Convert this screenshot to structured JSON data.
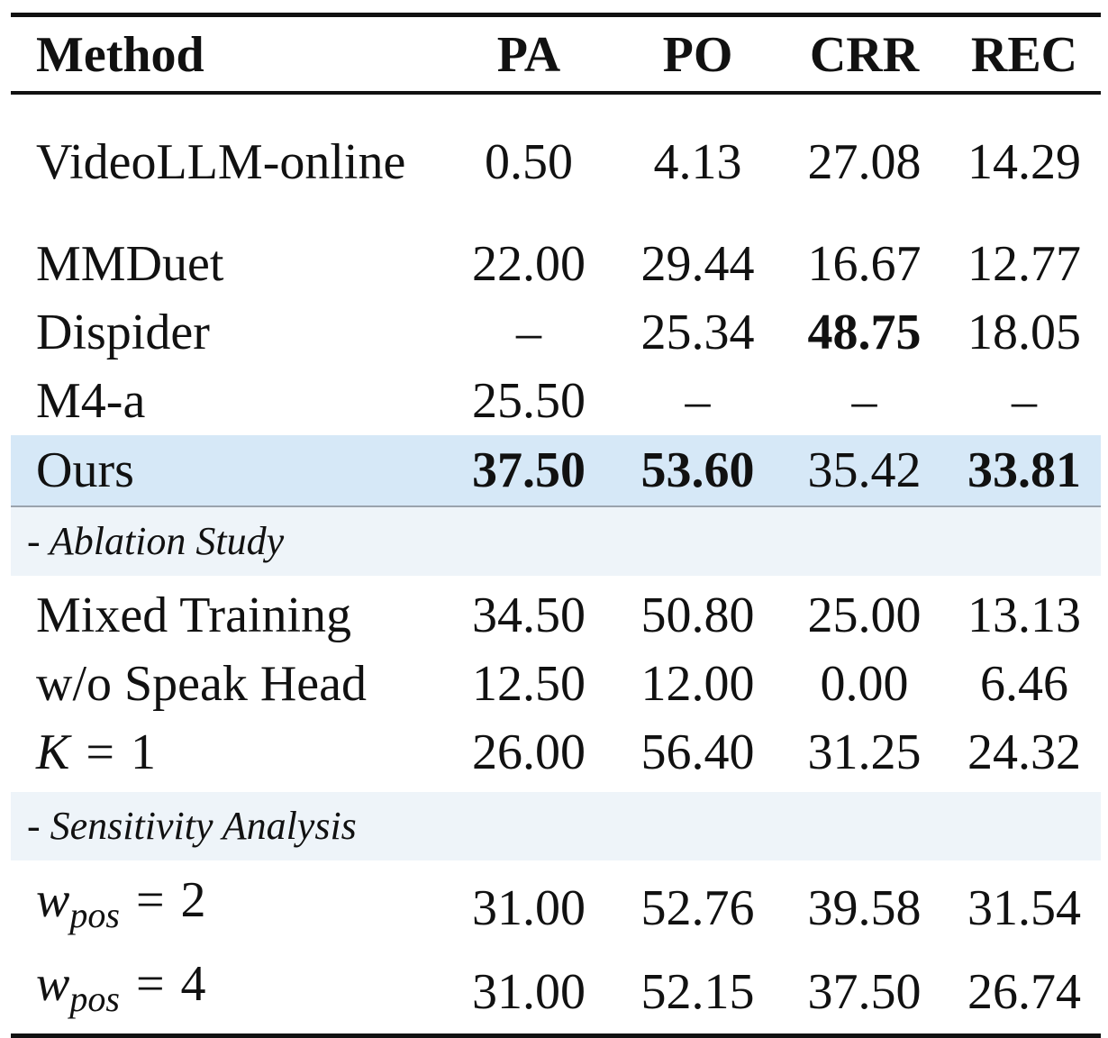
{
  "columns": [
    "Method",
    "PA",
    "PO",
    "CRR",
    "REC"
  ],
  "main_rows": [
    {
      "method": "VideoLLM-online",
      "pa": "0.50",
      "po": "4.13",
      "crr": "27.08",
      "rec": "14.29"
    },
    {
      "method": "MMDuet",
      "pa": "22.00",
      "po": "29.44",
      "crr": "16.67",
      "rec": "12.77"
    },
    {
      "method": "Dispider",
      "pa": "–",
      "po": "25.34",
      "crr": "48.75",
      "rec": "18.05"
    },
    {
      "method": "M4-a",
      "pa": "25.50",
      "po": "–",
      "crr": "–",
      "rec": "–"
    }
  ],
  "ours_row": {
    "method": "Ours",
    "pa": "37.50",
    "po": "53.60",
    "crr": "35.42",
    "rec": "33.81"
  },
  "ablation": {
    "title": "- Ablation Study",
    "rows": [
      {
        "method": "Mixed Training",
        "pa": "34.50",
        "po": "50.80",
        "crr": "25.00",
        "rec": "13.13"
      },
      {
        "method": "w/o Speak Head",
        "pa": "12.50",
        "po": "12.00",
        "crr": "0.00",
        "rec": "6.46"
      },
      {
        "method_var": "K",
        "method_eq": "=",
        "method_val": "1",
        "pa": "26.00",
        "po": "56.40",
        "crr": "31.25",
        "rec": "24.32"
      }
    ]
  },
  "sensitivity": {
    "title": "- Sensitivity Analysis",
    "rows": [
      {
        "method_var": "w",
        "method_sub": "pos",
        "method_eq": "=",
        "method_val": "2",
        "pa": "31.00",
        "po": "52.76",
        "crr": "39.58",
        "rec": "31.54"
      },
      {
        "method_var": "w",
        "method_sub": "pos",
        "method_eq": "=",
        "method_val": "4",
        "pa": "31.00",
        "po": "52.15",
        "crr": "37.50",
        "rec": "26.74"
      }
    ]
  },
  "colors": {
    "highlight_row": "#d6e8f7",
    "section_row": "#eef4f9",
    "rule": "#111111"
  }
}
